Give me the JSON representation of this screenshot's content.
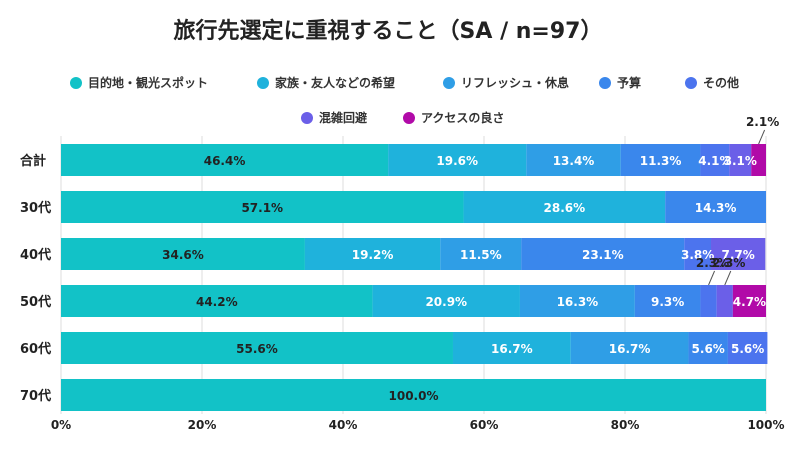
{
  "chart_data": {
    "type": "bar",
    "orientation": "horizontal",
    "stacked": true,
    "title": "旅行先選定に重視すること（SA / n=97）",
    "categories": [
      "合計",
      "30代",
      "40代",
      "50代",
      "60代",
      "70代"
    ],
    "series": [
      {
        "name": "目的地・観光スポット",
        "color": "#12c2c7",
        "values": [
          46.4,
          57.1,
          34.6,
          44.2,
          55.6,
          100.0
        ]
      },
      {
        "name": "家族・友人などの希望",
        "color": "#1fb2dc",
        "values": [
          19.6,
          28.6,
          19.2,
          20.9,
          16.7,
          0
        ]
      },
      {
        "name": "リフレッシュ・休息",
        "color": "#2f9ee6",
        "values": [
          13.4,
          0,
          11.5,
          16.3,
          16.7,
          0
        ]
      },
      {
        "name": "予算",
        "color": "#3a87ec",
        "values": [
          11.3,
          14.3,
          23.1,
          9.3,
          5.6,
          0
        ]
      },
      {
        "name": "その他",
        "color": "#4c74ee",
        "values": [
          4.1,
          0,
          3.8,
          2.3,
          5.6,
          0
        ]
      },
      {
        "name": "混雑回避",
        "color": "#6b5fe8",
        "values": [
          3.1,
          0,
          7.7,
          2.3,
          0,
          0
        ]
      },
      {
        "name": "アクセスの良さ",
        "color": "#b10aa8",
        "values": [
          2.1,
          0,
          0,
          4.7,
          0,
          0
        ]
      }
    ],
    "xlim": [
      0,
      100
    ],
    "xticks": [
      "0%",
      "20%",
      "40%",
      "60%",
      "80%",
      "100%"
    ],
    "grid": true,
    "legend_position": "top"
  }
}
